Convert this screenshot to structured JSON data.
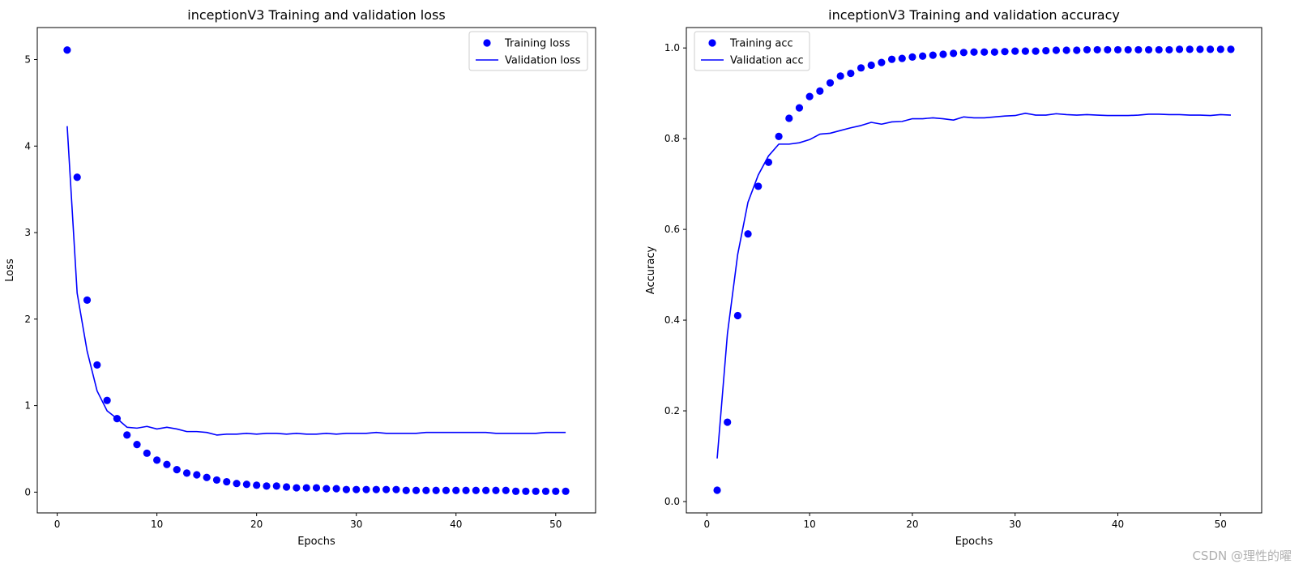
{
  "watermark": "CSDN @理性的曜",
  "colors": {
    "series": "#0000ff",
    "axis": "#000000",
    "text": "#000000",
    "watermark": "#b0b0b0"
  },
  "chart_data": [
    {
      "type": "line",
      "title": "inceptionV3 Training and validation loss",
      "xlabel": "Epochs",
      "ylabel": "Loss",
      "xlim": [
        -2,
        54
      ],
      "ylim": [
        -0.24,
        5.37
      ],
      "xticks": [
        0,
        10,
        20,
        30,
        40,
        50
      ],
      "yticks": [
        0,
        1,
        2,
        3,
        4,
        5
      ],
      "legend_position": "top-right",
      "grid": false,
      "x": [
        1,
        2,
        3,
        4,
        5,
        6,
        7,
        8,
        9,
        10,
        11,
        12,
        13,
        14,
        15,
        16,
        17,
        18,
        19,
        20,
        21,
        22,
        23,
        24,
        25,
        26,
        27,
        28,
        29,
        30,
        31,
        32,
        33,
        34,
        35,
        36,
        37,
        38,
        39,
        40,
        41,
        42,
        43,
        44,
        45,
        46,
        47,
        48,
        49,
        50,
        51
      ],
      "series": [
        {
          "name": "Training loss",
          "style": "points",
          "values": [
            5.11,
            3.64,
            2.22,
            1.47,
            1.06,
            0.85,
            0.66,
            0.55,
            0.45,
            0.37,
            0.32,
            0.26,
            0.22,
            0.2,
            0.17,
            0.14,
            0.12,
            0.1,
            0.09,
            0.08,
            0.07,
            0.07,
            0.06,
            0.05,
            0.05,
            0.05,
            0.04,
            0.04,
            0.03,
            0.03,
            0.03,
            0.03,
            0.03,
            0.03,
            0.02,
            0.02,
            0.02,
            0.02,
            0.02,
            0.02,
            0.02,
            0.02,
            0.02,
            0.02,
            0.02,
            0.01,
            0.01,
            0.01,
            0.01,
            0.01,
            0.01
          ]
        },
        {
          "name": "Validation loss",
          "style": "line",
          "values": [
            4.23,
            2.3,
            1.63,
            1.17,
            0.94,
            0.85,
            0.75,
            0.74,
            0.76,
            0.73,
            0.75,
            0.73,
            0.7,
            0.7,
            0.69,
            0.66,
            0.67,
            0.67,
            0.68,
            0.67,
            0.68,
            0.68,
            0.67,
            0.68,
            0.67,
            0.67,
            0.68,
            0.67,
            0.68,
            0.68,
            0.68,
            0.69,
            0.68,
            0.68,
            0.68,
            0.68,
            0.69,
            0.69,
            0.69,
            0.69,
            0.69,
            0.69,
            0.69,
            0.68,
            0.68,
            0.68,
            0.68,
            0.68,
            0.69,
            0.69,
            0.69
          ]
        }
      ]
    },
    {
      "type": "line",
      "title": "inceptionV3 Training and validation accuracy",
      "xlabel": "Epochs",
      "ylabel": "Accuracy",
      "xlim": [
        -2,
        54
      ],
      "ylim": [
        -0.025,
        1.045
      ],
      "xticks": [
        0,
        10,
        20,
        30,
        40,
        50
      ],
      "yticks": [
        0.0,
        0.2,
        0.4,
        0.6,
        0.8,
        1.0
      ],
      "legend_position": "top-left",
      "grid": false,
      "x": [
        1,
        2,
        3,
        4,
        5,
        6,
        7,
        8,
        9,
        10,
        11,
        12,
        13,
        14,
        15,
        16,
        17,
        18,
        19,
        20,
        21,
        22,
        23,
        24,
        25,
        26,
        27,
        28,
        29,
        30,
        31,
        32,
        33,
        34,
        35,
        36,
        37,
        38,
        39,
        40,
        41,
        42,
        43,
        44,
        45,
        46,
        47,
        48,
        49,
        50,
        51
      ],
      "series": [
        {
          "name": "Training acc",
          "style": "points",
          "values": [
            0.025,
            0.175,
            0.41,
            0.59,
            0.695,
            0.748,
            0.805,
            0.845,
            0.868,
            0.893,
            0.905,
            0.923,
            0.938,
            0.944,
            0.956,
            0.962,
            0.968,
            0.975,
            0.977,
            0.98,
            0.982,
            0.984,
            0.986,
            0.988,
            0.99,
            0.991,
            0.991,
            0.991,
            0.992,
            0.993,
            0.993,
            0.993,
            0.994,
            0.995,
            0.995,
            0.995,
            0.996,
            0.996,
            0.996,
            0.996,
            0.996,
            0.996,
            0.996,
            0.996,
            0.996,
            0.997,
            0.997,
            0.997,
            0.997,
            0.997,
            0.997
          ]
        },
        {
          "name": "Validation acc",
          "style": "line",
          "values": [
            0.095,
            0.37,
            0.545,
            0.66,
            0.72,
            0.762,
            0.788,
            0.788,
            0.791,
            0.798,
            0.81,
            0.812,
            0.818,
            0.824,
            0.829,
            0.836,
            0.832,
            0.837,
            0.838,
            0.844,
            0.844,
            0.846,
            0.844,
            0.841,
            0.848,
            0.846,
            0.846,
            0.848,
            0.85,
            0.851,
            0.856,
            0.852,
            0.852,
            0.855,
            0.853,
            0.852,
            0.853,
            0.852,
            0.851,
            0.851,
            0.851,
            0.852,
            0.854,
            0.854,
            0.853,
            0.853,
            0.852,
            0.852,
            0.851,
            0.853,
            0.852
          ]
        }
      ]
    }
  ]
}
